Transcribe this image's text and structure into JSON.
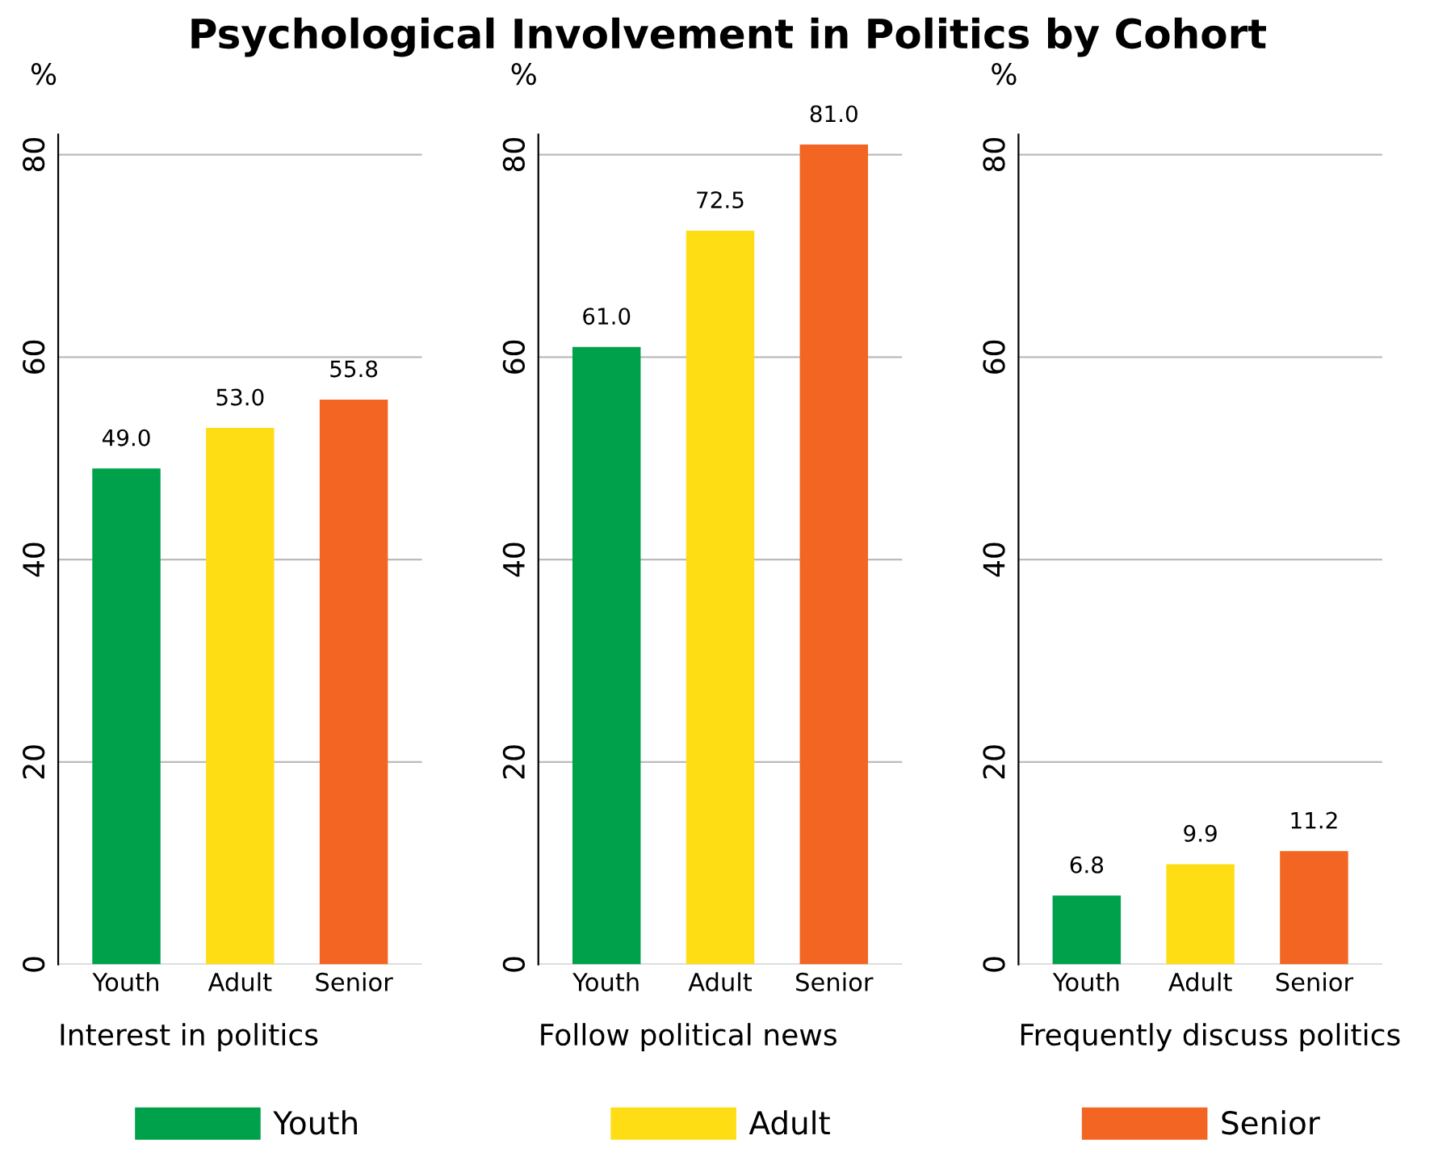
{
  "chart_data": [
    {
      "type": "bar",
      "title": "Psychological Involvement in Politics by Cohort",
      "xlabel": "Interest in politics",
      "ylabel": "%",
      "categories": [
        "Youth",
        "Adult",
        "Senior"
      ],
      "series": [
        {
          "name": "Youth",
          "color": "#00a14b",
          "values": [
            49.0,
            null,
            null
          ],
          "value_labels": [
            "49.0",
            null,
            null
          ]
        },
        {
          "name": "Adult",
          "color": "#ffdd15",
          "values": [
            null,
            53.0,
            null
          ],
          "value_labels": [
            null,
            "53.0",
            null
          ]
        },
        {
          "name": "Senior",
          "color": "#f26522",
          "values": [
            null,
            null,
            55.8
          ],
          "value_labels": [
            null,
            null,
            "55.8"
          ]
        }
      ],
      "ylim": [
        0,
        82
      ],
      "yticks": [
        0,
        20,
        40,
        60,
        80
      ],
      "grid": "y",
      "legend": "bottom"
    },
    {
      "type": "bar",
      "xlabel": "Follow political news",
      "ylabel": "%",
      "categories": [
        "Youth",
        "Adult",
        "Senior"
      ],
      "series": [
        {
          "color": "#00a14b",
          "values": [
            61.0,
            null,
            null
          ],
          "value_labels": [
            "61.0",
            null,
            null
          ]
        },
        {
          "color": "#ffdd15",
          "values": [
            null,
            72.5,
            null
          ],
          "value_labels": [
            null,
            "72.5",
            null
          ]
        },
        {
          "color": "#f26522",
          "values": [
            null,
            null,
            81.0
          ],
          "value_labels": [
            null,
            null,
            "81.0"
          ]
        }
      ],
      "ylim": [
        0,
        82
      ],
      "yticks": [
        0,
        20,
        40,
        60,
        80
      ],
      "grid": "y"
    },
    {
      "type": "bar",
      "xlabel": "Frequently discuss politics",
      "ylabel": "%",
      "categories": [
        "Youth",
        "Adult",
        "Senior"
      ],
      "series": [
        {
          "color": "#00a14b",
          "values": [
            6.8,
            null,
            null
          ],
          "value_labels": [
            "6.8",
            null,
            null
          ]
        },
        {
          "color": "#ffdd15",
          "values": [
            null,
            9.9,
            null
          ],
          "value_labels": [
            null,
            "9.9",
            null
          ]
        },
        {
          "color": "#f26522",
          "values": [
            null,
            null,
            11.2
          ],
          "value_labels": [
            null,
            null,
            "11.2"
          ]
        }
      ],
      "ylim": [
        0,
        82
      ],
      "yticks": [
        0,
        20,
        40,
        60,
        80
      ],
      "grid": "y"
    }
  ]
}
